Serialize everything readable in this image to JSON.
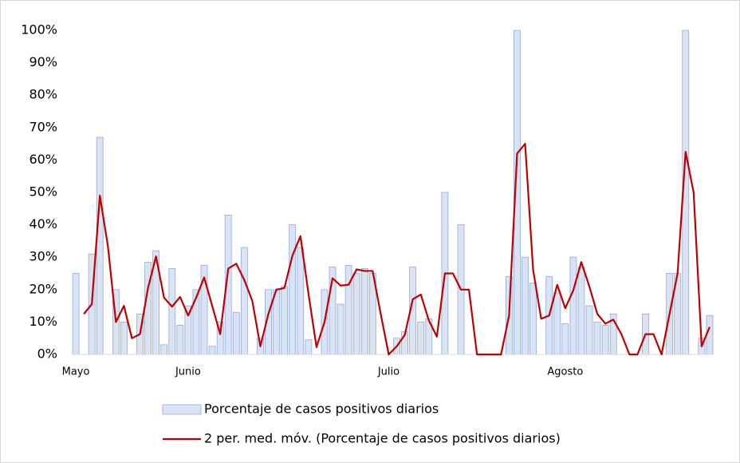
{
  "chart_data": {
    "type": "bar-line",
    "categories": [
      "Mayo",
      null,
      null,
      null,
      null,
      null,
      null,
      null,
      null,
      null,
      null,
      null,
      null,
      null,
      "Junio",
      null,
      null,
      null,
      null,
      null,
      null,
      null,
      null,
      null,
      null,
      null,
      null,
      null,
      null,
      null,
      null,
      null,
      null,
      null,
      null,
      null,
      null,
      null,
      null,
      "Julio",
      null,
      null,
      null,
      null,
      null,
      null,
      null,
      null,
      null,
      null,
      null,
      null,
      null,
      null,
      null,
      null,
      null,
      null,
      null,
      null,
      null,
      "Agosto",
      null,
      null,
      null,
      null,
      null,
      null,
      null,
      null,
      null,
      null,
      null,
      null,
      null,
      null,
      null,
      null,
      null,
      null
    ],
    "series": [
      {
        "name": "Porcentaje de casos positivos diarios",
        "kind": "bar",
        "color": "#dae3f3",
        "stroke": "#8faadc",
        "values": [
          25,
          0,
          31,
          67,
          0,
          20,
          10,
          0,
          12.5,
          28.5,
          32,
          3,
          26.5,
          9,
          15,
          20,
          27.5,
          2.5,
          10,
          43,
          13,
          33,
          0,
          5,
          20,
          20,
          21,
          40,
          33,
          4.5,
          0,
          20,
          27,
          15.5,
          27.5,
          25,
          26.5,
          25,
          0,
          0,
          5,
          7,
          27,
          10,
          11,
          0,
          50,
          0,
          40,
          0,
          0,
          0,
          0,
          0,
          24,
          100,
          30,
          22,
          0,
          24,
          19,
          9.5,
          30,
          27,
          15,
          10,
          9,
          12.5,
          0,
          0,
          0,
          12.5,
          0,
          0,
          25,
          25,
          100,
          0,
          5,
          12
        ]
      },
      {
        "name": "2 per. med. móv. (Porcentaje de casos positivos diarios)",
        "kind": "line",
        "color": "#c00000",
        "values": [
          null,
          12.5,
          15.5,
          49,
          33.5,
          10,
          15,
          5,
          6.25,
          20.5,
          30.25,
          17.5,
          14.75,
          17.75,
          12,
          17.5,
          23.75,
          15,
          6.25,
          26.5,
          28,
          23,
          16.5,
          2.5,
          12.5,
          20,
          20.5,
          30.5,
          36.5,
          18.75,
          2.25,
          10,
          23.5,
          21.25,
          21.5,
          26.25,
          25.75,
          25.75,
          12.5,
          0,
          2.5,
          6,
          17,
          18.5,
          10.5,
          5.5,
          25,
          25,
          20,
          20,
          0,
          0,
          0,
          0,
          12,
          62,
          65,
          26,
          11,
          12,
          21.5,
          14.25,
          19.75,
          28.5,
          21,
          12.5,
          9.5,
          10.75,
          6.25,
          0,
          0,
          6.25,
          6.25,
          0,
          12.5,
          25,
          62.5,
          50,
          2.5,
          8.5
        ]
      }
    ],
    "ylim": [
      0,
      100
    ],
    "yticks": [
      {
        "value": 0,
        "label": "0%"
      },
      {
        "value": 10,
        "label": "10%"
      },
      {
        "value": 20,
        "label": "20%"
      },
      {
        "value": 30,
        "label": "30%"
      },
      {
        "value": 40,
        "label": "40%"
      },
      {
        "value": 50,
        "label": "50%"
      },
      {
        "value": 60,
        "label": "60%"
      },
      {
        "value": 70,
        "label": "70%"
      },
      {
        "value": 80,
        "label": "80%"
      },
      {
        "value": 90,
        "label": "90%"
      },
      {
        "value": 100,
        "label": "100%"
      }
    ],
    "legend": "bottom"
  }
}
